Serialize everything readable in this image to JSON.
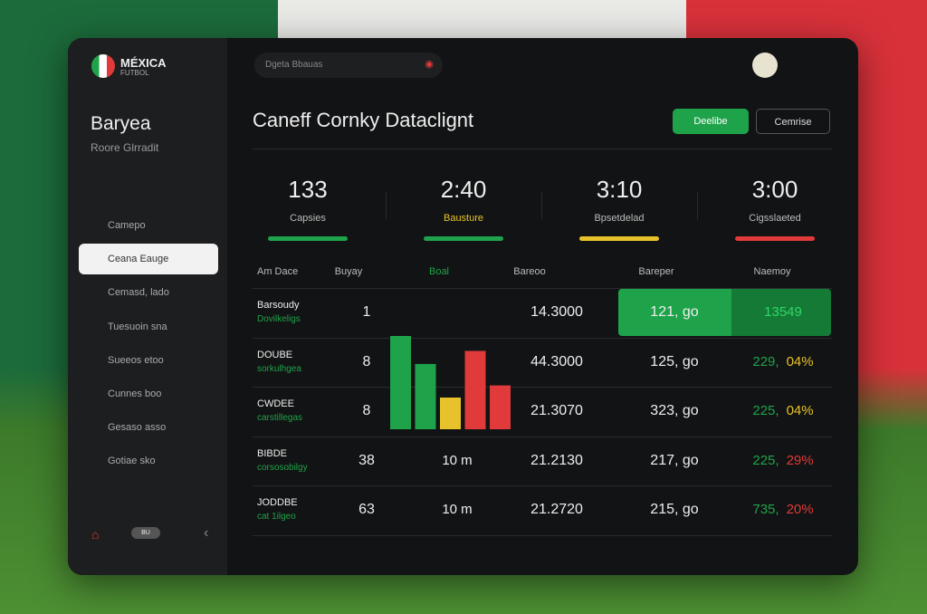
{
  "brand": {
    "name": "MÉXICA",
    "sub": "FUTBOL"
  },
  "sidebar": {
    "title": "Baryea",
    "subtitle": "Roore Glrradit",
    "nav": [
      "Camepo",
      "Ceana Eauge",
      "Cemasd, lado",
      "Tuesuoin sna",
      "Sueeos etoo",
      "Cunnes boo",
      "Gesaso asso",
      "Gotiae sko"
    ],
    "active": 1,
    "footer_badge": "BU"
  },
  "search": {
    "placeholder": "Dgeta Bbauas"
  },
  "header": {
    "title": "Caneff Cornky Dataclignt",
    "primary_button": "Deelibe",
    "secondary_button": "Cemrise"
  },
  "stats": [
    {
      "value": "133",
      "label": "Capsies",
      "color": "#1fa34a"
    },
    {
      "value": "2:40",
      "label": "Bausture",
      "color": "#1fa34a"
    },
    {
      "value": "3:10",
      "label": "Bpsetdelad",
      "color": "#e8c22a"
    },
    {
      "value": "3:00",
      "label": "Cigsslaeted",
      "color": "#e03a3a"
    }
  ],
  "table": {
    "columns": [
      "Am Dace",
      "Buyay",
      "Boal",
      "Bareoo",
      "Bareper",
      "Naemoy"
    ],
    "rows": [
      {
        "name": "Barsoudy",
        "sub": "Dovilkeligs",
        "count": "1",
        "goal": null,
        "amount": "14.3000",
        "rate": "121, go",
        "score": "13549",
        "pct": null,
        "pct_color": null
      },
      {
        "name": "DOUBE",
        "sub": "sorkulhgea",
        "count": "8",
        "goal": null,
        "amount": "44.3000",
        "rate": "125, go",
        "score": "229,",
        "pct": "04%",
        "pct_color": "#e8c22a"
      },
      {
        "name": "CWDEE",
        "sub": "carstillegas",
        "count": "8",
        "goal": null,
        "amount": "21.3070",
        "rate": "323, go",
        "score": "225,",
        "pct": "04%",
        "pct_color": "#e8c22a"
      },
      {
        "name": "BIBDE",
        "sub": "corsosobilgy",
        "count": "38",
        "goal": "10 m",
        "amount": "21.2130",
        "rate": "217, go",
        "score": "225,",
        "pct": "29%",
        "pct_color": "#e03a3a"
      },
      {
        "name": "JODDBE",
        "sub": "cat 1ilgeo",
        "count": "63",
        "goal": "10 m",
        "amount": "21.2720",
        "rate": "215, go",
        "score": "735,",
        "pct": "20%",
        "pct_color": "#e03a3a"
      }
    ]
  },
  "mini_chart": {
    "values": [
      100,
      70,
      34,
      84,
      47
    ],
    "colors": [
      "#1fa34a",
      "#1fa34a",
      "#e8c22a",
      "#e03a3a",
      "#e03a3a"
    ]
  }
}
